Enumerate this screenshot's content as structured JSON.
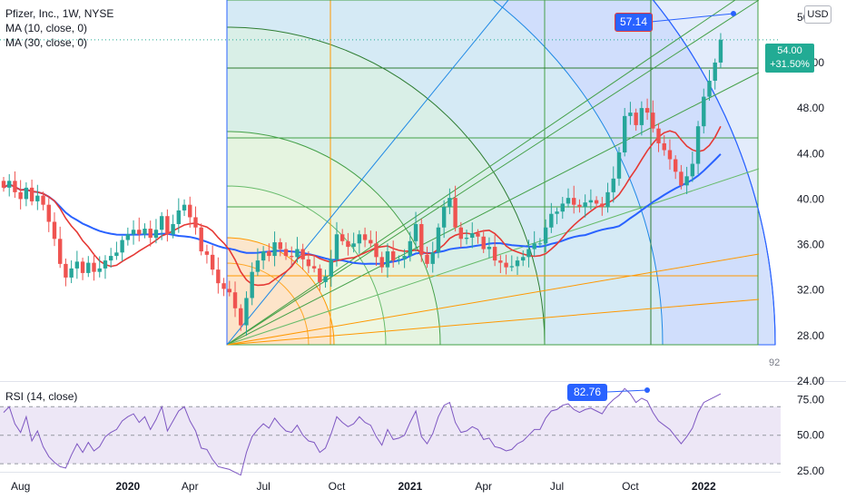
{
  "legend": {
    "title": "Pfizer, Inc., 1W, NYSE",
    "ma10": "MA (10, close, 0)",
    "ma30": "MA (30, close, 0)"
  },
  "rsi_label": "RSI (14, close)",
  "currency": "USD",
  "last_price": {
    "value": "54.00",
    "change": "+31.50%"
  },
  "callouts": {
    "top": "57.14",
    "rsi": "82.76"
  },
  "corner_label": "92",
  "colors": {
    "up": "#26a69a",
    "down": "#ef5350",
    "ma10": "#e53935",
    "ma30": "#2962ff",
    "rsi": "#7e57c2",
    "rsi_band": "#ede7f6"
  },
  "chart_data": {
    "type": "candlestick",
    "x_ticks": [
      "Aug",
      "2020",
      "Apr",
      "Jul",
      "Oct",
      "2021",
      "Apr",
      "Jul",
      "Oct",
      "2022"
    ],
    "x_bold_ticks": [
      "2020",
      "2021",
      "2022"
    ],
    "y_ticks": [
      "56.00",
      "52.00",
      "48.00",
      "44.00",
      "40.00",
      "36.00",
      "32.00",
      "28.00",
      "24.00"
    ],
    "y_range": [
      24,
      57.5
    ],
    "close": [
      41.0,
      41.6,
      40.6,
      40.0,
      41.0,
      39.8,
      40.3,
      39.5,
      38.0,
      36.5,
      34.3,
      33.1,
      33.9,
      34.5,
      33.5,
      34.4,
      33.6,
      33.9,
      34.6,
      35.0,
      35.3,
      36.4,
      36.9,
      37.3,
      36.9,
      37.4,
      36.6,
      37.3,
      38.5,
      36.9,
      37.8,
      39.0,
      39.5,
      38.4,
      37.5,
      35.4,
      35.1,
      33.8,
      32.6,
      32.1,
      31.8,
      30.4,
      28.9,
      31.3,
      33.6,
      34.6,
      35.4,
      35.0,
      36.2,
      35.6,
      35.0,
      34.9,
      35.6,
      34.7,
      34.1,
      33.9,
      32.7,
      33.2,
      34.7,
      36.9,
      36.3,
      35.8,
      36.1,
      36.9,
      36.4,
      36.1,
      34.9,
      34.0,
      35.4,
      34.6,
      34.7,
      35.0,
      36.3,
      37.8,
      35.1,
      34.3,
      35.3,
      37.5,
      39.3,
      40.1,
      37.5,
      36.5,
      36.6,
      37.0,
      36.7,
      35.6,
      35.8,
      34.6,
      34.4,
      34.0,
      34.1,
      34.6,
      34.9,
      35.6,
      36.1,
      36.1,
      37.5,
      38.7,
      38.9,
      39.6,
      40.1,
      39.5,
      39.3,
      39.7,
      39.9,
      39.6,
      39.3,
      40.6,
      41.8,
      44.1,
      47.3,
      47.6,
      46.5,
      48.0,
      47.6,
      46.2,
      44.9,
      44.3,
      43.5,
      42.4,
      41.2,
      42.0,
      43.1,
      46.4,
      49.0,
      50.4,
      52.0,
      54.0
    ],
    "ma10_label": "MA (10, close, 0)",
    "ma30_label": "MA (30, close, 0)",
    "rsi": {
      "label": "RSI (14, close)",
      "y_ticks": [
        "75.00",
        "50.00",
        "25.00"
      ],
      "bands": [
        30,
        70
      ],
      "y_range": [
        18,
        88
      ],
      "values": [
        66,
        70,
        58,
        52,
        63,
        46,
        53,
        42,
        35,
        31,
        28,
        27,
        36,
        44,
        38,
        45,
        39,
        42,
        49,
        52,
        54,
        60,
        63,
        65,
        59,
        63,
        54,
        61,
        70,
        53,
        60,
        67,
        70,
        60,
        53,
        41,
        40,
        33,
        28,
        27,
        26,
        24,
        22,
        38,
        49,
        54,
        58,
        55,
        62,
        57,
        53,
        52,
        57,
        50,
        46,
        45,
        38,
        41,
        51,
        63,
        59,
        56,
        58,
        63,
        59,
        57,
        49,
        43,
        54,
        47,
        48,
        50,
        59,
        67,
        49,
        44,
        51,
        63,
        71,
        73,
        59,
        52,
        53,
        56,
        54,
        47,
        48,
        42,
        41,
        39,
        40,
        44,
        46,
        50,
        54,
        54,
        62,
        67,
        68,
        71,
        72,
        68,
        66,
        68,
        69,
        67,
        65,
        71,
        75,
        78,
        82.76,
        79,
        73,
        76,
        74,
        66,
        60,
        57,
        54,
        49,
        44,
        49,
        55,
        66,
        73,
        75,
        77,
        79
      ]
    },
    "annotations": [
      {
        "type": "label",
        "text": "57.14",
        "value": 57.14
      },
      {
        "type": "label",
        "text": "82.76",
        "value": 82.76
      },
      {
        "type": "label",
        "text": "92"
      }
    ]
  }
}
